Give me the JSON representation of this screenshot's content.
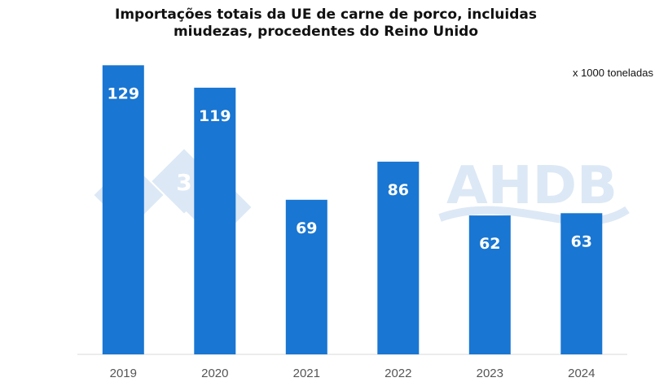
{
  "chart_data": {
    "type": "bar",
    "title_line1": "Importações totais da UE de carne de porco, incluidas",
    "title_line2": "miudezas, procedentes do Reino Unido",
    "unit_note": "x 1000 toneladas",
    "categories": [
      "2019",
      "2020",
      "2021",
      "2022",
      "2023",
      "2024"
    ],
    "values": [
      129,
      119,
      69,
      86,
      62,
      63
    ],
    "data_labels": [
      "129",
      "119",
      "69",
      "86",
      "62",
      "63"
    ],
    "xlabel": "",
    "ylabel": "",
    "ylim": [
      0,
      140
    ],
    "grid": false,
    "legend": "none",
    "bar_color": "#1976D2",
    "label_color": "#ffffff"
  },
  "watermark": {
    "logo_text": "AHDB",
    "badge_text": "3",
    "color": "#DCE8F5"
  }
}
